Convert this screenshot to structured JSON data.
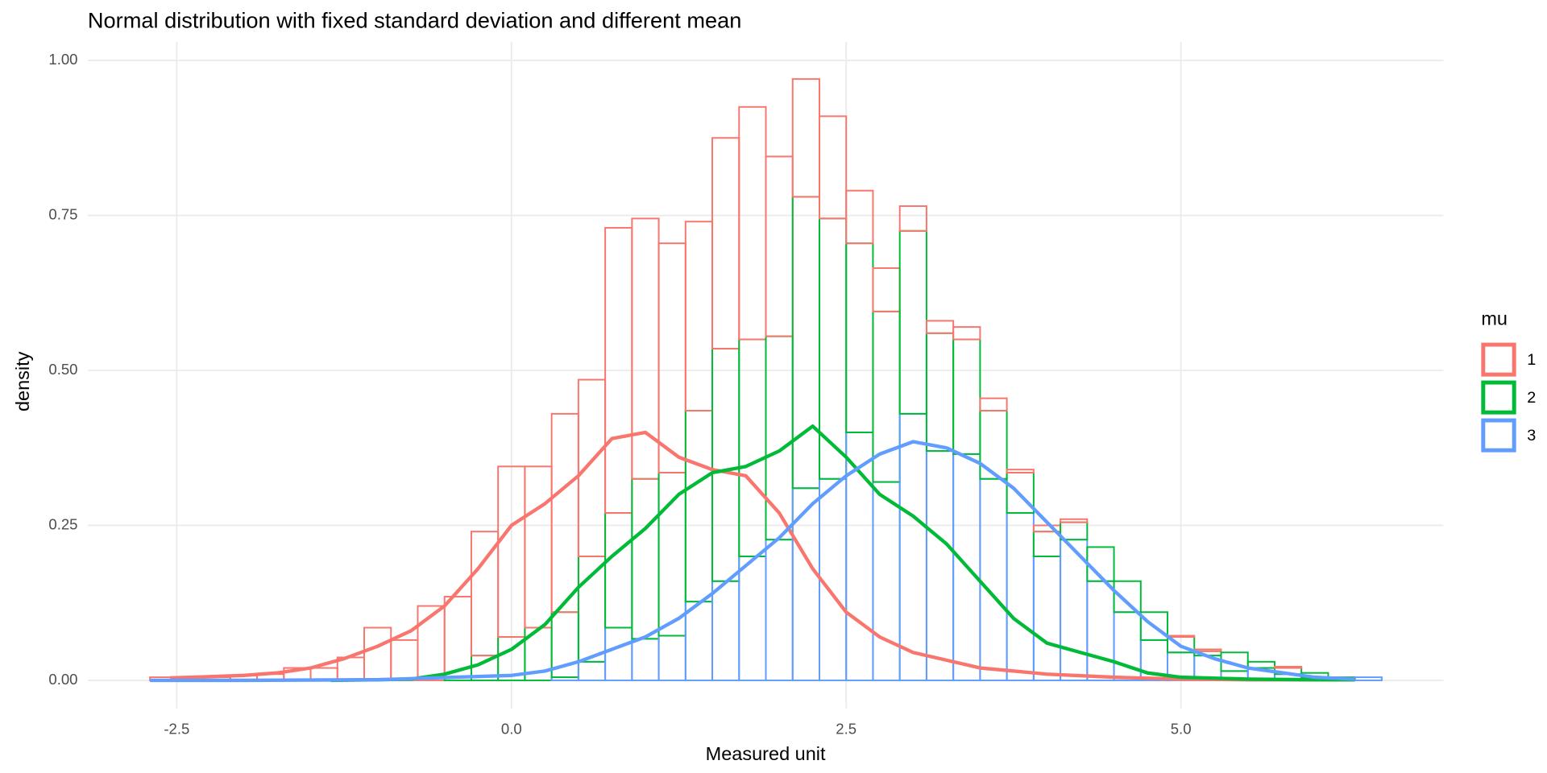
{
  "chart_data": {
    "type": "histogram",
    "title": "Normal distribution with fixed standard deviation and different mean",
    "x_label": "Measured unit",
    "y_label": "density",
    "legend_title": "mu",
    "legend": "right",
    "grid": true,
    "stacked": true,
    "xlim": [
      -3.165,
      6.96
    ],
    "ylim": [
      -0.045,
      1.03
    ],
    "xticks": [
      -2.5,
      {
        "value": 0,
        "label": "0.0"
      },
      2.5,
      {
        "value": 5,
        "label": "5.0"
      }
    ],
    "yticks": [
      {
        "value": 0,
        "label": "0.00"
      },
      0.25,
      {
        "value": 0.5,
        "label": "0.50"
      },
      0.75,
      {
        "value": 1,
        "label": "1.00"
      }
    ],
    "bins": [
      -2.7,
      -2.5,
      -2.3,
      -2.1,
      -1.9,
      -1.7,
      -1.5,
      -1.3,
      -1.1,
      -0.9,
      -0.7,
      -0.5,
      -0.3,
      -0.1,
      0.1,
      0.3,
      0.5,
      0.7,
      0.9,
      1.1,
      1.3,
      1.5,
      1.7,
      1.9,
      2.1,
      2.3,
      2.5,
      2.7,
      2.9,
      3.1,
      3.3,
      3.5,
      3.7,
      3.9,
      4.1,
      4.3,
      4.5,
      4.7,
      4.9,
      5.1,
      5.3,
      5.5,
      5.7,
      5.9,
      6.1,
      6.3,
      6.5
    ],
    "series": [
      {
        "name": "1",
        "color": "#F8766D",
        "values": [
          0.005,
          0.005,
          0.005,
          0.008,
          0.01,
          0.02,
          0.02,
          0.037,
          0.085,
          0.065,
          0.12,
          0.13,
          0.2,
          0.275,
          0.26,
          0.32,
          0.285,
          0.46,
          0.42,
          0.37,
          0.305,
          0.34,
          0.375,
          0.29,
          0.19,
          0.165,
          0.085,
          0.07,
          0.04,
          0.02,
          0.02,
          0.02,
          0.005,
          0.01,
          0.005,
          0,
          0,
          0,
          0.002,
          0.003,
          0,
          0,
          0.002,
          0,
          0,
          0
        ]
      },
      {
        "name": "2",
        "color": "#00BA38",
        "values": [
          0,
          0,
          0,
          0,
          0,
          0,
          0,
          0,
          0,
          0,
          0,
          0.005,
          0.04,
          0.07,
          0.085,
          0.105,
          0.17,
          0.185,
          0.258,
          0.263,
          0.308,
          0.375,
          0.35,
          0.328,
          0.47,
          0.42,
          0.305,
          0.275,
          0.295,
          0.19,
          0.185,
          0.11,
          0.065,
          0.04,
          0.028,
          0.055,
          0.05,
          0.045,
          0.025,
          0.007,
          0.03,
          0.01,
          0.01,
          0.007,
          0.002,
          0
        ]
      },
      {
        "name": "3",
        "color": "#619CFF",
        "values": [
          0,
          0,
          0,
          0,
          0,
          0,
          0,
          0,
          0,
          0,
          0,
          0,
          0,
          0,
          0,
          0.005,
          0.03,
          0.085,
          0.067,
          0.072,
          0.127,
          0.16,
          0.2,
          0.227,
          0.31,
          0.325,
          0.4,
          0.32,
          0.43,
          0.37,
          0.365,
          0.325,
          0.27,
          0.2,
          0.227,
          0.16,
          0.11,
          0.065,
          0.045,
          0.04,
          0.015,
          0.02,
          0.01,
          0.005,
          0.003,
          0.005
        ]
      }
    ],
    "density": [
      {
        "color": "#F8766D",
        "x": [
          -2.55,
          -2.25,
          -2,
          -1.75,
          -1.5,
          -1.25,
          -1,
          -0.75,
          -0.5,
          -0.25,
          0,
          0.25,
          0.5,
          0.75,
          1,
          1.25,
          1.5,
          1.75,
          2,
          2.25,
          2.5,
          2.75,
          3,
          3.5,
          4,
          4.5,
          5,
          5.5,
          6,
          6.3
        ],
        "values": [
          0.004,
          0.006,
          0.008,
          0.012,
          0.02,
          0.035,
          0.055,
          0.08,
          0.12,
          0.18,
          0.25,
          0.285,
          0.33,
          0.39,
          0.4,
          0.36,
          0.34,
          0.33,
          0.27,
          0.18,
          0.11,
          0.07,
          0.045,
          0.02,
          0.01,
          0.005,
          0.002,
          0.001,
          0.001,
          0.001
        ]
      },
      {
        "color": "#00BA38",
        "x": [
          -1.35,
          -1,
          -0.75,
          -0.5,
          -0.25,
          0,
          0.25,
          0.5,
          0.75,
          1,
          1.25,
          1.5,
          1.75,
          2,
          2.25,
          2.5,
          2.75,
          3,
          3.25,
          3.5,
          3.75,
          4,
          4.25,
          4.5,
          4.75,
          5,
          5.5,
          6,
          6.3
        ],
        "values": [
          0,
          0.001,
          0.002,
          0.01,
          0.025,
          0.05,
          0.09,
          0.15,
          0.2,
          0.245,
          0.3,
          0.335,
          0.345,
          0.37,
          0.41,
          0.36,
          0.3,
          0.265,
          0.22,
          0.16,
          0.1,
          0.06,
          0.045,
          0.03,
          0.012,
          0.005,
          0.002,
          0.001,
          0.001
        ]
      },
      {
        "color": "#619CFF",
        "x": [
          -2.7,
          -2,
          -1,
          0,
          0.25,
          0.5,
          0.75,
          1,
          1.25,
          1.5,
          1.75,
          2,
          2.25,
          2.5,
          2.75,
          3,
          3.25,
          3.5,
          3.75,
          4,
          4.25,
          4.5,
          4.75,
          5,
          5.25,
          5.5,
          6,
          6.3
        ],
        "values": [
          0,
          0,
          0.001,
          0.008,
          0.015,
          0.03,
          0.05,
          0.07,
          0.1,
          0.14,
          0.185,
          0.23,
          0.285,
          0.33,
          0.365,
          0.385,
          0.375,
          0.35,
          0.31,
          0.255,
          0.2,
          0.145,
          0.095,
          0.055,
          0.035,
          0.02,
          0.005,
          0.002
        ]
      }
    ]
  }
}
